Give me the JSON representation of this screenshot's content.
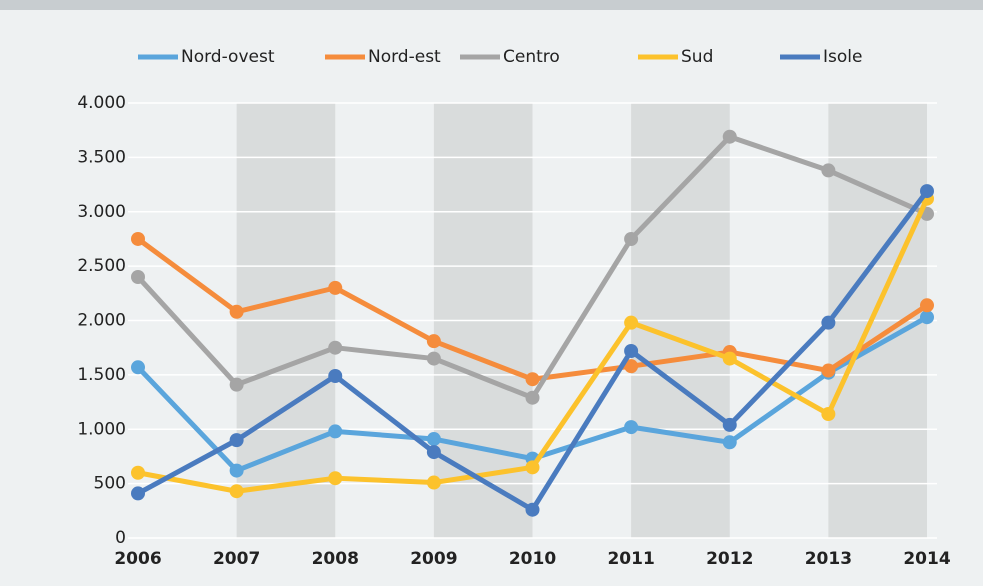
{
  "chart_data": {
    "type": "line",
    "categories": [
      "2006",
      "2007",
      "2008",
      "2009",
      "2010",
      "2011",
      "2012",
      "2013",
      "2014"
    ],
    "series": [
      {
        "name": "Nord-ovest",
        "color": "#5aa5dc",
        "values": [
          1570,
          620,
          980,
          910,
          730,
          1020,
          880,
          1520,
          2030
        ]
      },
      {
        "name": "Nord-est",
        "color": "#f58c3c",
        "values": [
          2750,
          2080,
          2300,
          1810,
          1460,
          1580,
          1710,
          1540,
          2140
        ]
      },
      {
        "name": "Centro",
        "color": "#a5a5a5",
        "values": [
          2400,
          1410,
          1750,
          1650,
          1290,
          2750,
          3690,
          3380,
          2980
        ]
      },
      {
        "name": "Sud",
        "color": "#fcc22c",
        "values": [
          600,
          430,
          550,
          510,
          650,
          1980,
          1650,
          1140,
          3120
        ]
      },
      {
        "name": "Isole",
        "color": "#4a7bbf",
        "values": [
          410,
          900,
          1490,
          790,
          260,
          1720,
          1040,
          1980,
          3190
        ]
      }
    ],
    "ylim": [
      0,
      4000
    ],
    "yticks": [
      0,
      500,
      {
        "value": 1000,
        "label": "1.000"
      },
      {
        "value": 1500,
        "label": "1.500"
      },
      {
        "value": 2000,
        "label": "2.000"
      },
      {
        "value": 2500,
        "label": "2.500"
      },
      {
        "value": 3000,
        "label": "3.000"
      },
      {
        "value": 3500,
        "label": "3.500"
      },
      {
        "value": 4000,
        "label": "4.000"
      }
    ],
    "grid": true,
    "legend": "top"
  }
}
